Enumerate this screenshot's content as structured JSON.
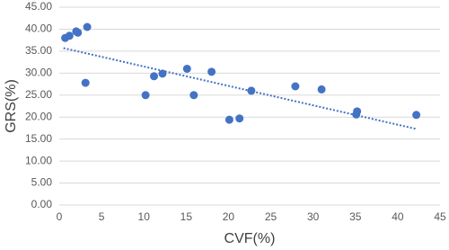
{
  "chart_data": {
    "type": "scatter",
    "x_label": "CVF(%)",
    "y_label": "GRS(%)",
    "series": [
      {
        "color": "#4472c4",
        "x": [
          0.7,
          1.2,
          2.0,
          2.2,
          3.3,
          3.1,
          10.2,
          11.2,
          12.2,
          15.1,
          15.9,
          18.0,
          20.1,
          21.3,
          22.7,
          27.9,
          31.0,
          35.1,
          35.2,
          42.2
        ],
        "values": [
          38.0,
          38.5,
          39.5,
          39.2,
          40.5,
          27.8,
          25.0,
          29.3,
          29.9,
          31.0,
          25.0,
          30.3,
          19.4,
          19.7,
          26.0,
          27.0,
          26.3,
          20.6,
          21.3,
          20.5
        ]
      }
    ],
    "trendline": {
      "color": "#4472c4",
      "x": [
        0.5,
        42.2
      ],
      "values": [
        35.7,
        17.3
      ]
    },
    "xlim": [
      0,
      45
    ],
    "xticks": [
      0,
      5,
      10,
      15,
      20,
      25,
      30,
      35,
      40,
      45
    ],
    "ylim": [
      0,
      45
    ],
    "yticks": [
      {
        "value": 0,
        "label": "0.00"
      },
      {
        "value": 5,
        "label": "5.00"
      },
      {
        "value": 10,
        "label": "10.00"
      },
      {
        "value": 15,
        "label": "15.00"
      },
      {
        "value": 20,
        "label": "20.00"
      },
      {
        "value": 25,
        "label": "25.00"
      },
      {
        "value": 30,
        "label": "30.00"
      },
      {
        "value": 35,
        "label": "35.00"
      },
      {
        "value": 40,
        "label": "40.00"
      },
      {
        "value": 45,
        "label": "45.00"
      }
    ],
    "grid": true
  }
}
